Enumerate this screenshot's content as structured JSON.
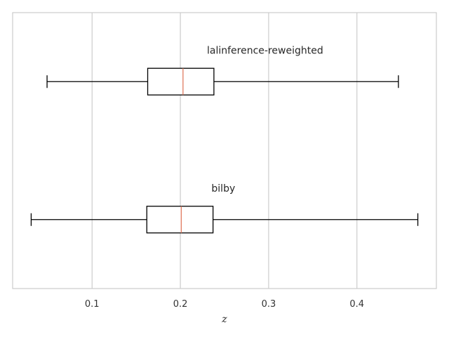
{
  "chart_data": {
    "type": "boxplot",
    "orientation": "horizontal",
    "title": "",
    "xlabel": "z",
    "ylabel": "",
    "xlim": [
      0.01,
      0.49
    ],
    "xticks": [
      0.1,
      0.2,
      0.3,
      0.4
    ],
    "xtick_labels": [
      "0.1",
      "0.2",
      "0.3",
      "0.4"
    ],
    "grid": "vertical",
    "colors": {
      "box": "#000000",
      "median": "#e07a5f",
      "grid": "#cccccc",
      "frame": "#cccccc"
    },
    "series": [
      {
        "name": "lalinference-reweighted",
        "whisker_low": 0.049,
        "q1": 0.163,
        "median": 0.203,
        "q3": 0.238,
        "whisker_high": 0.447
      },
      {
        "name": "bilby",
        "whisker_low": 0.031,
        "q1": 0.162,
        "median": 0.201,
        "q3": 0.237,
        "whisker_high": 0.469
      }
    ]
  }
}
